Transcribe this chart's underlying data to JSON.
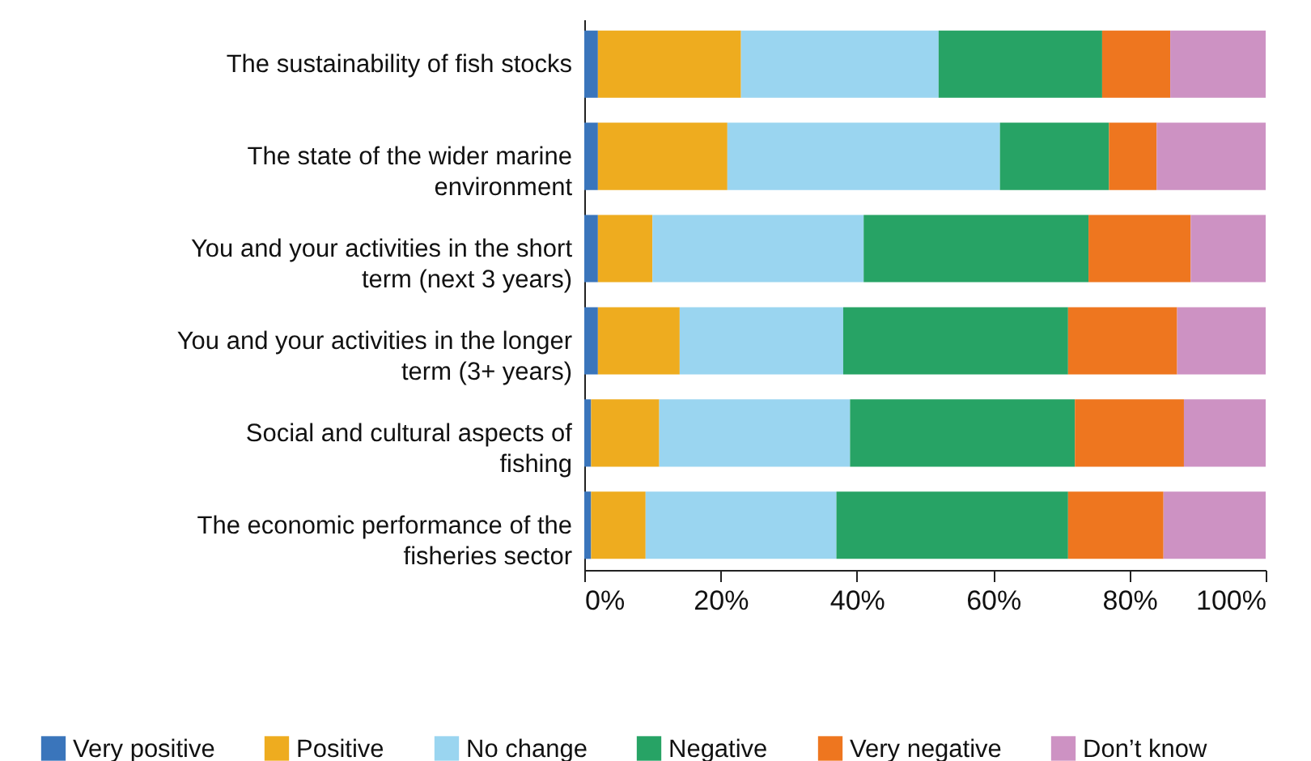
{
  "chart_data": {
    "type": "bar",
    "orientation": "horizontal",
    "stacked": true,
    "categories": [
      "The sustainability of fish stocks",
      "The state of the wider marine environment",
      "You and your activities in the short term (next 3 years)",
      "You and your activities in the longer term (3+ years)",
      "Social and cultural aspects of fishing",
      "The economic performance of the fisheries sector"
    ],
    "series": [
      {
        "name": "Very positive",
        "color": "#3a75bb",
        "values": [
          2,
          2,
          2,
          2,
          1,
          1
        ]
      },
      {
        "name": "Positive",
        "color": "#eeac1f",
        "values": [
          21,
          19,
          8,
          12,
          10,
          8
        ]
      },
      {
        "name": "No change",
        "color": "#9ad5f0",
        "values": [
          29,
          40,
          31,
          24,
          28,
          28
        ]
      },
      {
        "name": "Negative",
        "color": "#27a365",
        "values": [
          24,
          16,
          33,
          33,
          33,
          34
        ]
      },
      {
        "name": "Very negative",
        "color": "#ee761f",
        "values": [
          10,
          7,
          15,
          16,
          16,
          14
        ]
      },
      {
        "name": "Don’t know",
        "color": "#cd92c3",
        "values": [
          14,
          16,
          11,
          13,
          12,
          15
        ]
      }
    ],
    "xlim": [
      0,
      100
    ],
    "xticks": [
      {
        "value": 0,
        "label": "0%"
      },
      {
        "value": 20,
        "label": "20%"
      },
      {
        "value": 40,
        "label": "40%"
      },
      {
        "value": 60,
        "label": "60%"
      },
      {
        "value": 80,
        "label": "80%"
      },
      {
        "value": 100,
        "label": "100%"
      }
    ],
    "grid": false,
    "legend": "bottom"
  }
}
